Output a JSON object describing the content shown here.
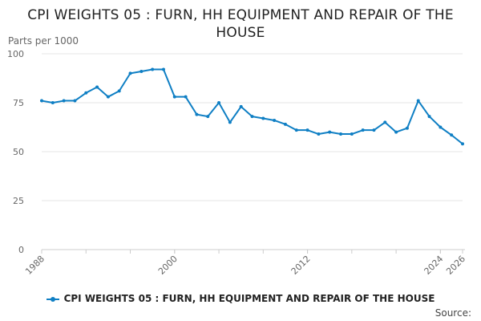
{
  "chart_data": {
    "type": "line",
    "title": "CPI WEIGHTS 05 : FURN, HH EQUIPMENT AND REPAIR OF THE HOUSE",
    "ylabel": "Parts per 1000",
    "xlabel": "",
    "ylim": [
      0,
      100
    ],
    "xlim": [
      1988,
      2026
    ],
    "y_ticks": [
      0,
      25,
      50,
      75,
      100
    ],
    "x_ticks": [
      1988,
      2000,
      2012,
      2024,
      2026
    ],
    "grid": true,
    "legend_position": "bottom",
    "color": "#0f7fc4",
    "series": [
      {
        "name": "CPI WEIGHTS 05 : FURN, HH EQUIPMENT AND REPAIR OF THE HOUSE",
        "x": [
          1988,
          1989,
          1990,
          1991,
          1992,
          1993,
          1994,
          1995,
          1996,
          1997,
          1998,
          1999,
          2000,
          2001,
          2002,
          2003,
          2004,
          2005,
          2006,
          2007,
          2008,
          2009,
          2010,
          2011,
          2012,
          2013,
          2014,
          2015,
          2016,
          2017,
          2018,
          2019,
          2020,
          2021,
          2022,
          2023,
          2024,
          2025,
          2026
        ],
        "values": [
          76,
          75,
          76,
          76,
          80,
          83,
          78,
          81,
          90,
          91,
          92,
          92,
          78,
          78,
          69,
          68,
          75,
          65,
          73,
          68,
          67,
          66,
          64,
          61,
          61,
          59,
          60,
          59,
          59,
          61,
          61,
          65,
          60,
          62,
          76,
          68,
          62.5,
          58.5,
          54
        ]
      }
    ]
  },
  "source_label": "Source:"
}
